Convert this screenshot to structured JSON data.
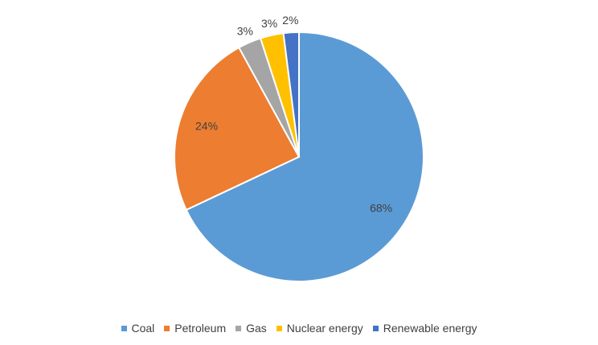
{
  "chart_data": {
    "type": "pie",
    "title": "",
    "categories": [
      "Coal",
      "Petroleum",
      "Gas",
      "Nuclear energy",
      "Renewable energy"
    ],
    "values": [
      68,
      24,
      3,
      3,
      2
    ],
    "data_labels": [
      "68%",
      "24%",
      "3%",
      "3%",
      "2%"
    ],
    "colors": [
      "#5B9BD5",
      "#ED7D31",
      "#A5A5A5",
      "#FFC000",
      "#4472C4"
    ],
    "legend_position": "bottom",
    "start": "12 o'clock, clockwise"
  }
}
